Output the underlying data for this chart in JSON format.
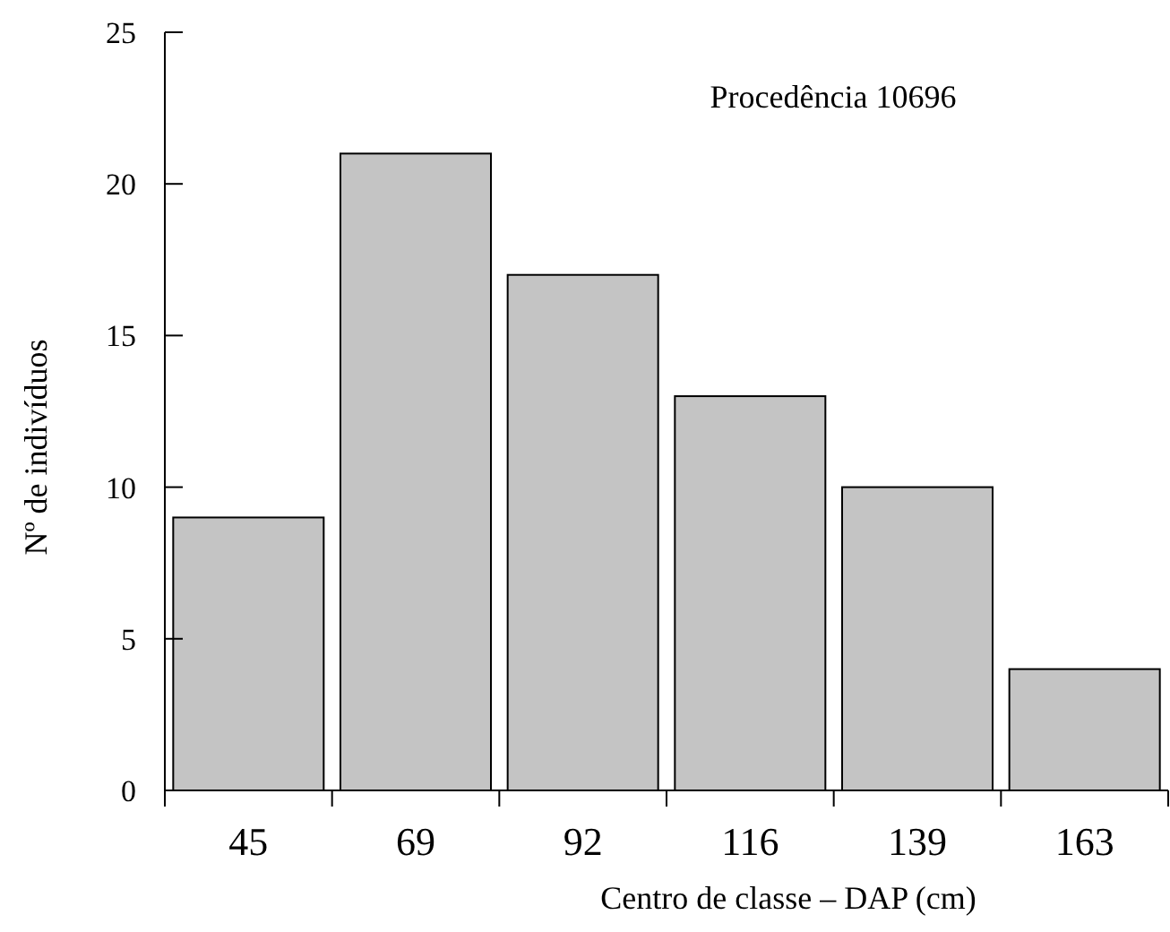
{
  "chart_data": {
    "type": "bar",
    "title": "Procedência 10696",
    "xlabel": "Centro de classe – DAP (cm)",
    "ylabel": "Nº de indivíduos",
    "categories": [
      "45",
      "69",
      "92",
      "116",
      "139",
      "163"
    ],
    "values": [
      9,
      21,
      17,
      13,
      10,
      4
    ],
    "color": "#c4c4c4",
    "ylim": [
      0,
      25
    ],
    "yticks": [
      0,
      5,
      10,
      15,
      20,
      25
    ],
    "grid": false
  }
}
